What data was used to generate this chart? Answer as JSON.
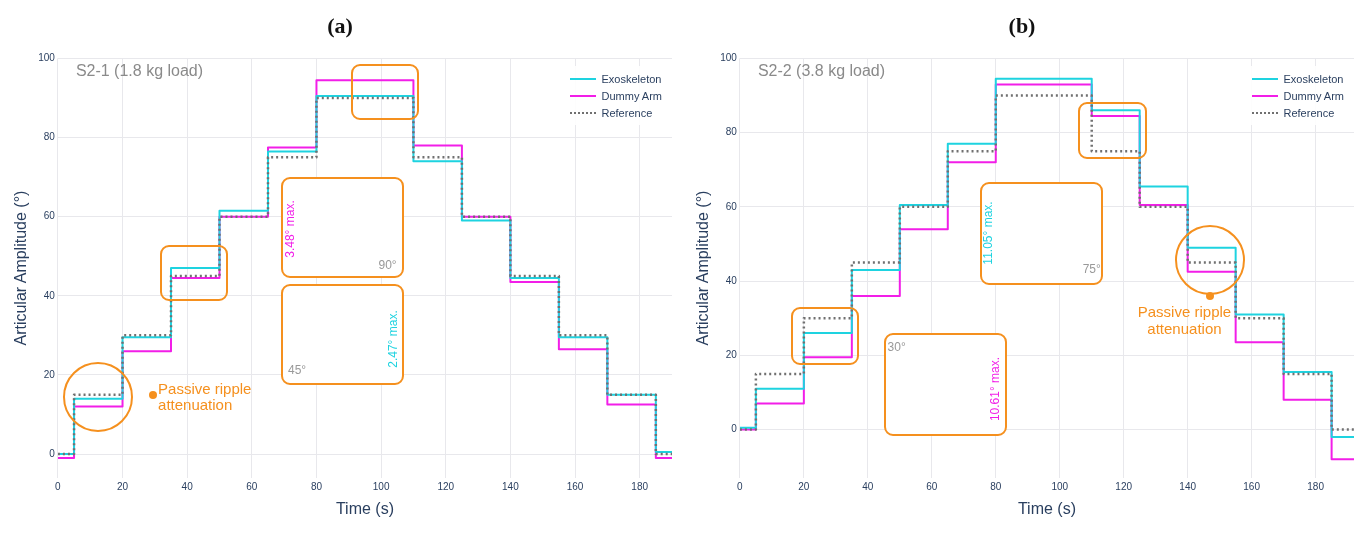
{
  "chart_data": [
    {
      "type": "step",
      "title": "(a)",
      "subtitle": "S2-1 (1.8 kg load)",
      "xlabel": "Time (s)",
      "ylabel": "Articular Amplitude (°)",
      "x": [
        0,
        5,
        20,
        35,
        50,
        65,
        80,
        110,
        125,
        140,
        155,
        170,
        185,
        190
      ],
      "series": [
        {
          "name": "Exoskeleton",
          "color": "#1ed3e0",
          "values": [
            0,
            14,
            29.5,
            47,
            61.5,
            76.5,
            90.5,
            74,
            59,
            44.5,
            29.5,
            15,
            0.5,
            0.5
          ]
        },
        {
          "name": "Dummy Arm",
          "color": "#f21ee8",
          "values": [
            -1,
            12,
            26,
            44.5,
            60,
            77.5,
            94.5,
            78,
            60,
            43.5,
            26.5,
            12.5,
            -1,
            -1
          ]
        },
        {
          "name": "Reference",
          "color": "#707070",
          "line_style": "dotted",
          "values": [
            0,
            15,
            30,
            45,
            60,
            75,
            90,
            75,
            60,
            45,
            30,
            15,
            0,
            0
          ]
        }
      ],
      "xlim": [
        0,
        190
      ],
      "ylim": [
        -6,
        100
      ],
      "xticks": [
        0,
        20,
        40,
        60,
        80,
        100,
        120,
        140,
        160,
        180
      ],
      "yticks": [
        0,
        20,
        40,
        60,
        80,
        100
      ],
      "grid": true,
      "legend": "top right",
      "annotations": [
        "3.48° max.",
        "90°",
        "2.47° max.",
        "45°",
        "Passive ripple attenuation"
      ]
    },
    {
      "type": "step",
      "title": "(b)",
      "subtitle": "S2-2 (3.8 kg load)",
      "xlabel": "Time (s)",
      "ylabel": "Articular Amplitude (°)",
      "x": [
        0,
        5,
        20,
        35,
        50,
        65,
        80,
        110,
        125,
        140,
        155,
        170,
        185,
        192
      ],
      "series": [
        {
          "name": "Exoskeleton",
          "color": "#1ed3e0",
          "values": [
            0.5,
            11,
            26,
            43,
            60.5,
            77,
            94.5,
            86,
            65.5,
            49,
            31,
            15.5,
            -2,
            -2
          ]
        },
        {
          "name": "Dummy Arm",
          "color": "#f21ee8",
          "values": [
            0,
            7,
            19.5,
            36,
            54,
            72,
            93,
            84.5,
            60.5,
            42.5,
            23.5,
            8,
            -8,
            -8
          ]
        },
        {
          "name": "Reference",
          "color": "#707070",
          "line_style": "dotted",
          "values": [
            0,
            15,
            30,
            45,
            60,
            75,
            90,
            75,
            60,
            45,
            30,
            15,
            0,
            0
          ]
        }
      ],
      "xlim": [
        0,
        192
      ],
      "ylim": [
        -13,
        100
      ],
      "xticks": [
        0,
        20,
        40,
        60,
        80,
        100,
        120,
        140,
        160,
        180
      ],
      "yticks": [
        0,
        20,
        40,
        60,
        80,
        100
      ],
      "grid": true,
      "legend": "top right",
      "annotations": [
        "11.05° max.",
        "75°",
        "30°",
        "10.61° max.",
        "Passive ripple attenuation"
      ]
    }
  ]
}
